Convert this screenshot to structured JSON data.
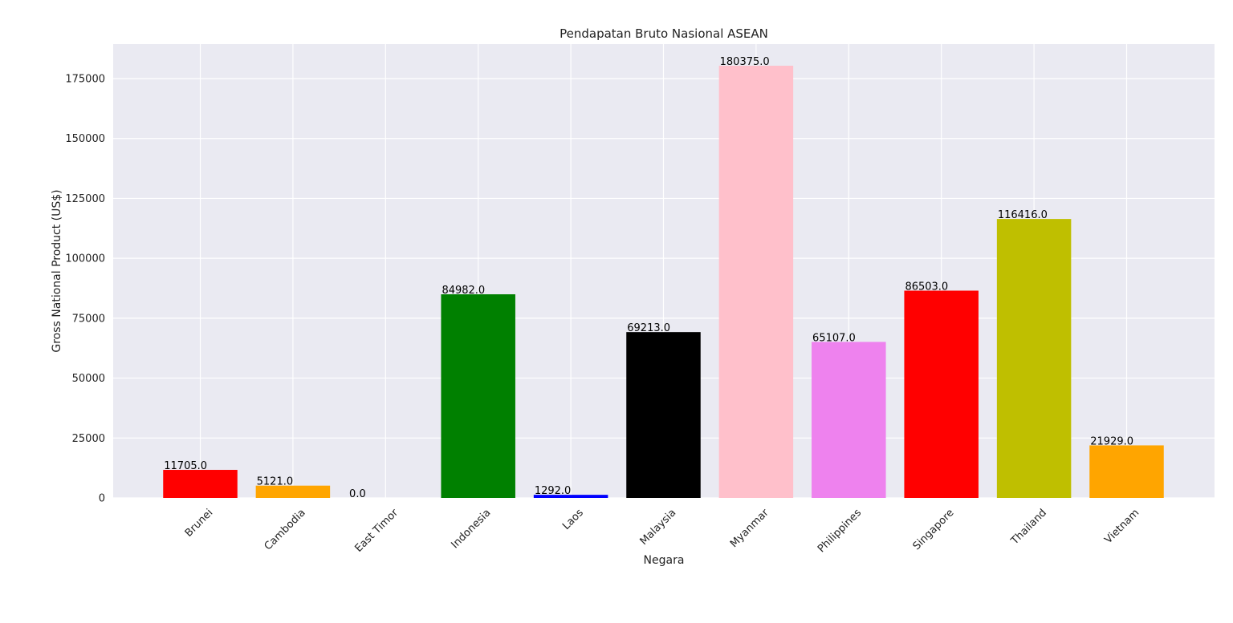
{
  "chart_data": {
    "type": "bar",
    "title": "Pendapatan Bruto Nasional ASEAN",
    "xlabel": "Negara",
    "ylabel": "Gross National Product (US$)",
    "categories": [
      "Brunei",
      "Cambodia",
      "East Timor",
      "Indonesia",
      "Laos",
      "Malaysia",
      "Myanmar",
      "Philippines",
      "Singapore",
      "Thailand",
      "Vietnam"
    ],
    "values": [
      11705,
      5121,
      0,
      84982,
      1292,
      69213,
      180375,
      65107,
      86503,
      116416,
      21929
    ],
    "value_labels": [
      "11705.0",
      "5121.0",
      "0.0",
      "84982.0",
      "1292.0",
      "69213.0",
      "180375.0",
      "65107.0",
      "86503.0",
      "116416.0",
      "21929.0"
    ],
    "colors": [
      "#ff0000",
      "#ffa500",
      "#808080",
      "#008000",
      "#0000ff",
      "#000000",
      "#ffc0cb",
      "#ee82ee",
      "#ff0000",
      "#bfbf00",
      "#ffa500"
    ],
    "ylim": [
      0,
      189400
    ],
    "yticks": [
      0,
      25000,
      50000,
      75000,
      100000,
      125000,
      150000,
      175000
    ],
    "ytick_labels": [
      "0",
      "25000",
      "50000",
      "75000",
      "100000",
      "125000",
      "150000",
      "175000"
    ],
    "grid": true,
    "background": "#eaeaf2",
    "tick_rotation": 45
  }
}
